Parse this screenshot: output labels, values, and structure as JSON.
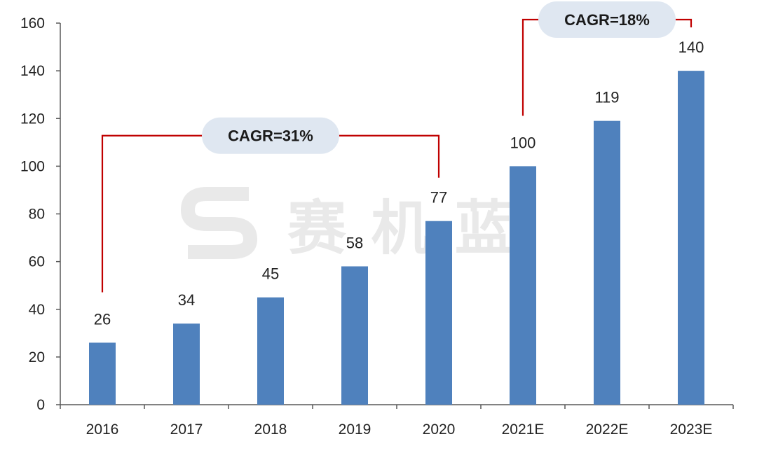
{
  "chart_data": {
    "type": "bar",
    "categories": [
      "2016",
      "2017",
      "2018",
      "2019",
      "2020",
      "2021E",
      "2022E",
      "2023E"
    ],
    "values": [
      26,
      34,
      45,
      58,
      77,
      100,
      119,
      140
    ],
    "data_labels": [
      "26",
      "34",
      "45",
      "58",
      "77",
      "100",
      "119",
      "140"
    ],
    "title": "",
    "xlabel": "",
    "ylabel": "",
    "ylim": [
      0,
      160
    ],
    "yticks": [
      0,
      20,
      40,
      60,
      80,
      100,
      120,
      140,
      160
    ],
    "ytick_labels": [
      "0",
      "20",
      "40",
      "60",
      "80",
      "100",
      "120",
      "140",
      "160"
    ],
    "grid": false,
    "legend": "none",
    "bar_color": "#4f81bd",
    "annotations": [
      {
        "text": "CAGR=31%",
        "from_category": "2016",
        "to_category": "2020",
        "from_y": 26,
        "to_y": 77
      },
      {
        "text": "CAGR=18%",
        "from_category": "2021E",
        "to_category": "2023E",
        "from_y": 100,
        "to_y": 140
      }
    ],
    "annotation_line_color": "#c00000",
    "annotation_box_color": "#dfe7f1"
  },
  "watermark": {
    "text": "赛 机 蓝",
    "icon": "s-logo-icon"
  }
}
